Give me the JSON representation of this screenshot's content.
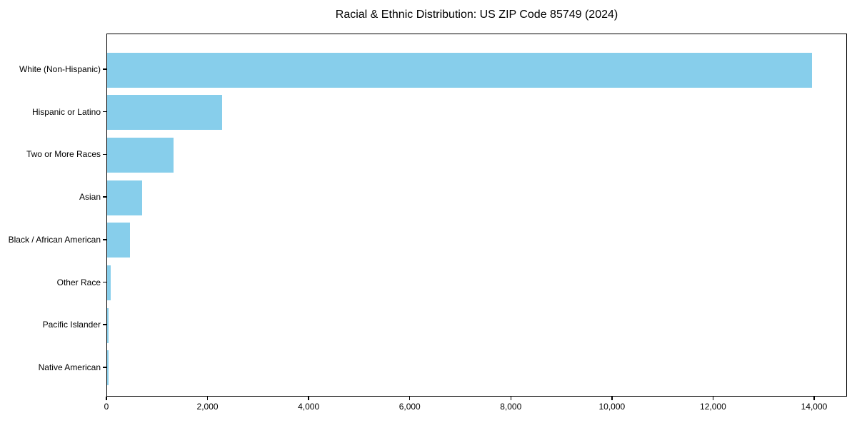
{
  "title": "Racial & Ethnic Distribution: US ZIP Code 85749 (2024)",
  "colors": {
    "bar": "#87CEEB",
    "axis": "#000000",
    "background": "#FFFFFF",
    "text": "#000000"
  },
  "chart_data": {
    "type": "bar",
    "orientation": "horizontal",
    "title": "Racial & Ethnic Distribution: US ZIP Code 85749 (2024)",
    "categories": [
      "White (Non-Hispanic)",
      "Hispanic or Latino",
      "Two or More Races",
      "Asian",
      "Black / African American",
      "Other Race",
      "Pacific Islander",
      "Native American"
    ],
    "values": [
      13950,
      2270,
      1310,
      690,
      450,
      75,
      35,
      30
    ],
    "xlabel": "",
    "ylabel": "",
    "xlim": [
      0,
      14650
    ],
    "xticks": [
      0,
      2000,
      4000,
      6000,
      8000,
      10000,
      12000,
      14000
    ],
    "xtick_labels": [
      "0",
      "2,000",
      "4,000",
      "6,000",
      "8,000",
      "10,000",
      "12,000",
      "14,000"
    ],
    "grid": false,
    "legend": null,
    "bar_color": "#87CEEB"
  }
}
